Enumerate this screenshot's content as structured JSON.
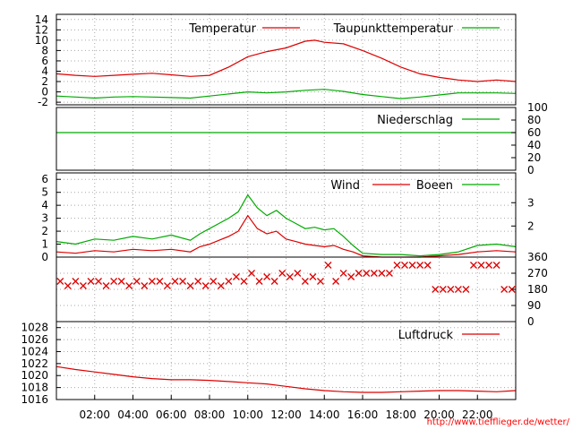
{
  "credit": "http://www.tiefflieger.de/wetter/",
  "colors": {
    "red": "#dd0000",
    "green": "#00aa00",
    "frame": "#000000",
    "grid": "#a8a8a8"
  },
  "x_axis": {
    "range_hours": [
      0,
      24
    ],
    "ticks": [
      {
        "h": 2,
        "label": "02:00"
      },
      {
        "h": 4,
        "label": "04:00"
      },
      {
        "h": 6,
        "label": "06:00"
      },
      {
        "h": 8,
        "label": "08:00"
      },
      {
        "h": 10,
        "label": "10:00"
      },
      {
        "h": 12,
        "label": "12:00"
      },
      {
        "h": 14,
        "label": "14:00"
      },
      {
        "h": 16,
        "label": "16:00"
      },
      {
        "h": 18,
        "label": "18:00"
      },
      {
        "h": 20,
        "label": "20:00"
      },
      {
        "h": 22,
        "label": "22:00"
      }
    ]
  },
  "chart_data": [
    {
      "id": "temperature",
      "type": "line",
      "ylim": [
        -2.5,
        15
      ],
      "y_ticks_left": [
        "14",
        "12",
        "10",
        "8",
        "6",
        "4",
        "2",
        "0",
        "-2"
      ],
      "y_tick_values": [
        14,
        12,
        10,
        8,
        6,
        4,
        2,
        0,
        -2
      ],
      "grid": true,
      "legend_position": "top-right",
      "series": [
        {
          "name": "Temperatur",
          "color": "#dd0000",
          "x": [
            0,
            1,
            2,
            3,
            4,
            5,
            6,
            7,
            8,
            9,
            10,
            11,
            12,
            13,
            13.5,
            14,
            15,
            16,
            17,
            18,
            19,
            20,
            21,
            22,
            23,
            24
          ],
          "y": [
            3.5,
            3.2,
            3.0,
            3.2,
            3.4,
            3.6,
            3.3,
            3.0,
            3.2,
            4.8,
            6.8,
            7.8,
            8.5,
            9.8,
            10.0,
            9.6,
            9.3,
            8.0,
            6.5,
            4.8,
            3.5,
            2.8,
            2.3,
            2.0,
            2.3,
            2.0
          ]
        },
        {
          "name": "Taupunkttemperatur",
          "color": "#00aa00",
          "x": [
            0,
            1,
            2,
            3,
            4,
            5,
            6,
            7,
            8,
            9,
            10,
            11,
            12,
            13,
            14,
            15,
            16,
            17,
            18,
            19,
            20,
            21,
            22,
            23,
            24
          ],
          "y": [
            -0.8,
            -1.0,
            -1.2,
            -1.0,
            -0.9,
            -1.0,
            -1.1,
            -1.2,
            -0.8,
            -0.4,
            0.0,
            -0.2,
            0.0,
            0.3,
            0.5,
            0.1,
            -0.5,
            -0.9,
            -1.3,
            -1.0,
            -0.6,
            -0.2,
            -0.2,
            -0.2,
            -0.3
          ]
        }
      ]
    },
    {
      "id": "precipitation",
      "type": "line",
      "ylim": [
        0,
        100
      ],
      "y_ticks_right": [
        "100",
        "80",
        "60",
        "40",
        "20",
        "0"
      ],
      "y_tick_values": [
        100,
        80,
        60,
        40,
        20,
        0
      ],
      "grid": false,
      "legend_position": "top-right",
      "series": [
        {
          "name": "Niederschlag",
          "color": "#00aa00",
          "x": [
            0,
            24
          ],
          "y": [
            60,
            60
          ]
        }
      ]
    },
    {
      "id": "wind",
      "type": "line",
      "ylim": [
        0,
        6.5
      ],
      "y_ticks_left": [
        "6",
        "5",
        "4",
        "3",
        "2",
        "1",
        "0"
      ],
      "y_tick_values": [
        6,
        5,
        4,
        3,
        2,
        1,
        0
      ],
      "y_ticks_right": [
        "3",
        "2"
      ],
      "y_right_values": [
        4.2,
        2.4
      ],
      "grid": true,
      "legend_position": "top-right",
      "series": [
        {
          "name": "Wind",
          "color": "#dd0000",
          "x": [
            0,
            1,
            2,
            3,
            4,
            5,
            6,
            7,
            7.5,
            8,
            8.5,
            9,
            9.5,
            10,
            10.5,
            11,
            11.5,
            12,
            12.5,
            13,
            13.5,
            14,
            14.5,
            15,
            15.5,
            16,
            17,
            18,
            19,
            20,
            21,
            22,
            23,
            24
          ],
          "y": [
            0.4,
            0.3,
            0.5,
            0.4,
            0.6,
            0.5,
            0.6,
            0.4,
            0.8,
            1.0,
            1.3,
            1.6,
            2.0,
            3.2,
            2.2,
            1.8,
            2.0,
            1.4,
            1.2,
            1.0,
            0.9,
            0.8,
            0.9,
            0.6,
            0.4,
            0.1,
            0.0,
            0.0,
            0.0,
            0.1,
            0.2,
            0.4,
            0.5,
            0.4
          ]
        },
        {
          "name": "Boeen",
          "color": "#00aa00",
          "x": [
            0,
            1,
            2,
            3,
            4,
            5,
            6,
            7,
            7.5,
            8,
            8.5,
            9,
            9.5,
            10,
            10.5,
            11,
            11.5,
            12,
            12.5,
            13,
            13.5,
            14,
            14.5,
            15,
            15.5,
            16,
            17,
            18,
            19,
            20,
            21,
            22,
            23,
            24
          ],
          "y": [
            1.2,
            1.0,
            1.4,
            1.3,
            1.6,
            1.4,
            1.7,
            1.3,
            1.8,
            2.2,
            2.6,
            3.0,
            3.5,
            4.8,
            3.8,
            3.2,
            3.6,
            3.0,
            2.6,
            2.2,
            2.3,
            2.1,
            2.2,
            1.6,
            0.9,
            0.3,
            0.2,
            0.2,
            0.1,
            0.2,
            0.4,
            0.9,
            1.0,
            0.8
          ]
        }
      ]
    },
    {
      "id": "wind_direction",
      "type": "scatter",
      "ylim": [
        0,
        360
      ],
      "y_ticks_right": [
        "360",
        "270",
        "180",
        "90",
        "0"
      ],
      "y_tick_values": [
        360,
        270,
        180,
        90,
        0
      ],
      "grid": true,
      "series": [
        {
          "name": "",
          "color": "#dd0000",
          "marker": "x",
          "x": [
            0.2,
            0.6,
            1.0,
            1.4,
            1.8,
            2.2,
            2.6,
            3.0,
            3.4,
            3.8,
            4.2,
            4.6,
            5.0,
            5.4,
            5.8,
            6.2,
            6.6,
            7.0,
            7.4,
            7.8,
            8.2,
            8.6,
            9.0,
            9.4,
            9.8,
            10.2,
            10.6,
            11.0,
            11.4,
            11.8,
            12.2,
            12.6,
            13.0,
            13.4,
            13.8,
            14.2,
            14.6,
            15.0,
            15.4,
            15.8,
            16.2,
            16.6,
            17.0,
            17.4,
            17.8,
            18.2,
            18.6,
            19.0,
            19.4,
            19.8,
            20.2,
            20.6,
            21.0,
            21.4,
            21.8,
            22.2,
            22.6,
            23.0,
            23.4,
            23.8
          ],
          "y": [
            225,
            200,
            225,
            200,
            225,
            225,
            200,
            225,
            225,
            200,
            225,
            200,
            225,
            225,
            200,
            225,
            225,
            200,
            225,
            200,
            225,
            200,
            225,
            250,
            225,
            270,
            225,
            250,
            225,
            270,
            250,
            270,
            225,
            250,
            225,
            315,
            225,
            270,
            250,
            270,
            270,
            270,
            270,
            270,
            315,
            315,
            315,
            315,
            315,
            180,
            180,
            180,
            180,
            180,
            315,
            315,
            315,
            315,
            180,
            180
          ]
        }
      ]
    },
    {
      "id": "pressure",
      "type": "line",
      "ylim": [
        1016,
        1029
      ],
      "y_ticks_left": [
        "1028",
        "1026",
        "1024",
        "1022",
        "1020",
        "1018",
        "1016"
      ],
      "y_tick_values": [
        1028,
        1026,
        1024,
        1022,
        1020,
        1018,
        1016
      ],
      "grid": true,
      "legend_position": "top-right",
      "series": [
        {
          "name": "Luftdruck",
          "color": "#dd0000",
          "x": [
            0,
            1,
            2,
            3,
            4,
            5,
            6,
            7,
            8,
            9,
            10,
            11,
            12,
            13,
            14,
            15,
            16,
            17,
            18,
            19,
            20,
            21,
            22,
            23,
            24
          ],
          "y": [
            1021.5,
            1021.0,
            1020.6,
            1020.2,
            1019.8,
            1019.5,
            1019.3,
            1019.3,
            1019.2,
            1019.0,
            1018.8,
            1018.6,
            1018.2,
            1017.8,
            1017.5,
            1017.3,
            1017.2,
            1017.2,
            1017.3,
            1017.4,
            1017.5,
            1017.5,
            1017.4,
            1017.3,
            1017.5
          ]
        }
      ]
    }
  ]
}
